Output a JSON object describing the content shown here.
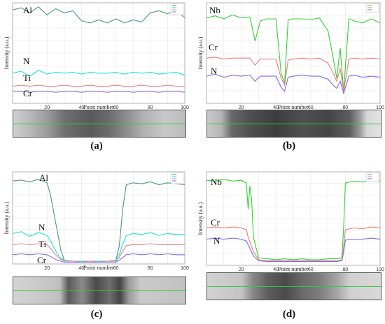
{
  "figure": {
    "colors": {
      "Al": "#4a9a7a",
      "Nb": "#2fd42f",
      "N": "#19e0e0",
      "N_violet": "#7b6cf0",
      "Ti": "#f08080",
      "Cr": "#8a70d8",
      "Cr_red": "#f07a7a"
    }
  },
  "chart_data": [
    {
      "panel_label": "(a)",
      "type": "line",
      "xlabel": "Point number",
      "ylabel": "Intensity (a.u.)",
      "xlim": [
        0,
        100
      ],
      "xticks": [
        20,
        40,
        60,
        80,
        100
      ],
      "ylim": [
        0,
        100
      ],
      "grid": true,
      "legend_position": "top-right",
      "series": [
        {
          "name": "Al",
          "color": "#4a9a7a",
          "x": [
            0,
            5,
            10,
            15,
            20,
            25,
            30,
            35,
            40,
            45,
            50,
            55,
            60,
            65,
            70,
            75,
            80,
            85,
            90,
            95,
            100
          ],
          "values": [
            93,
            95,
            90,
            96,
            88,
            94,
            90,
            92,
            82,
            80,
            83,
            80,
            84,
            80,
            83,
            81,
            90,
            92,
            89,
            93,
            85
          ]
        },
        {
          "name": "N",
          "color": "#19e0e0",
          "x": [
            0,
            5,
            10,
            15,
            20,
            25,
            30,
            35,
            40,
            45,
            50,
            55,
            60,
            65,
            70,
            75,
            80,
            85,
            90,
            95,
            100
          ],
          "values": [
            30,
            32,
            27,
            33,
            29,
            31,
            30,
            31,
            29,
            31,
            30,
            30,
            31,
            29,
            31,
            30,
            31,
            29,
            30,
            31,
            28
          ]
        },
        {
          "name": "Ti",
          "color": "#f08080",
          "x": [
            0,
            5,
            10,
            15,
            20,
            25,
            30,
            35,
            40,
            45,
            50,
            55,
            60,
            65,
            70,
            75,
            80,
            85,
            90,
            95,
            100
          ],
          "values": [
            17,
            18,
            17,
            18,
            17,
            17,
            18,
            17,
            17,
            18,
            17,
            17,
            18,
            17,
            17,
            18,
            17,
            17,
            18,
            17,
            17
          ]
        },
        {
          "name": "Cr",
          "color": "#8a70d8",
          "x": [
            0,
            5,
            10,
            15,
            20,
            25,
            30,
            35,
            40,
            45,
            50,
            55,
            60,
            65,
            70,
            75,
            80,
            85,
            90,
            95,
            100
          ],
          "values": [
            12,
            12,
            11,
            12,
            12,
            11,
            12,
            12,
            11,
            12,
            12,
            11,
            12,
            12,
            11,
            12,
            12,
            11,
            12,
            12,
            11
          ]
        }
      ]
    },
    {
      "panel_label": "(b)",
      "type": "line",
      "xlabel": "Point number",
      "ylabel": "Intensity (a.u.)",
      "xlim": [
        0,
        100
      ],
      "xticks": [
        20,
        40,
        60,
        80,
        100
      ],
      "ylim": [
        0,
        100
      ],
      "grid": true,
      "legend_position": "top-right",
      "series": [
        {
          "name": "Nb",
          "color": "#2fd42f",
          "x": [
            0,
            5,
            10,
            15,
            20,
            25,
            28,
            31,
            35,
            40,
            43,
            45,
            47,
            50,
            55,
            60,
            65,
            70,
            73,
            75,
            77,
            79,
            82,
            85,
            90,
            95,
            100
          ],
          "values": [
            85,
            87,
            84,
            88,
            85,
            86,
            62,
            82,
            84,
            84,
            30,
            20,
            83,
            84,
            84,
            83,
            85,
            72,
            45,
            25,
            55,
            12,
            84,
            82,
            80,
            84,
            80
          ]
        },
        {
          "name": "Cr",
          "color": "#f07a7a",
          "x": [
            0,
            5,
            10,
            15,
            20,
            25,
            28,
            31,
            35,
            40,
            43,
            45,
            47,
            50,
            55,
            60,
            65,
            70,
            73,
            75,
            77,
            79,
            82,
            85,
            90,
            95,
            100
          ],
          "values": [
            45,
            46,
            44,
            45,
            45,
            45,
            38,
            44,
            44,
            44,
            25,
            18,
            43,
            44,
            45,
            44,
            45,
            40,
            30,
            22,
            35,
            12,
            44,
            45,
            44,
            45,
            44
          ]
        },
        {
          "name": "N",
          "color": "#7b6cf0",
          "x": [
            0,
            5,
            10,
            15,
            20,
            25,
            28,
            31,
            35,
            40,
            43,
            45,
            47,
            50,
            55,
            60,
            65,
            70,
            73,
            75,
            77,
            79,
            82,
            85,
            90,
            95,
            100
          ],
          "values": [
            27,
            29,
            26,
            28,
            27,
            28,
            22,
            27,
            27,
            27,
            16,
            12,
            26,
            27,
            28,
            27,
            27,
            24,
            18,
            15,
            22,
            10,
            27,
            28,
            26,
            27,
            26
          ]
        }
      ]
    },
    {
      "panel_label": "(c)",
      "type": "line",
      "xlabel": "Point number",
      "ylabel": "Intensity (a.u.)",
      "xlim": [
        0,
        100
      ],
      "xticks": [
        20,
        40,
        60,
        80,
        100
      ],
      "ylim": [
        0,
        100
      ],
      "grid": true,
      "legend_position": "top-right",
      "series": [
        {
          "name": "Al",
          "color": "#4a9a7a",
          "x": [
            0,
            5,
            10,
            15,
            20,
            22,
            24,
            26,
            28,
            30,
            35,
            40,
            45,
            50,
            55,
            60,
            62,
            64,
            66,
            70,
            75,
            80,
            85,
            90,
            95,
            100
          ],
          "values": [
            90,
            91,
            89,
            92,
            88,
            75,
            55,
            35,
            15,
            4,
            3,
            3,
            3,
            3,
            3,
            4,
            20,
            60,
            86,
            88,
            87,
            89,
            86,
            88,
            87,
            86
          ]
        },
        {
          "name": "N",
          "color": "#19e0e0",
          "x": [
            0,
            5,
            10,
            15,
            20,
            22,
            24,
            26,
            28,
            30,
            35,
            40,
            45,
            50,
            55,
            60,
            62,
            64,
            66,
            70,
            75,
            80,
            85,
            90,
            95,
            100
          ],
          "values": [
            33,
            35,
            30,
            34,
            31,
            25,
            18,
            11,
            6,
            4,
            3,
            3,
            3,
            3,
            3,
            4,
            10,
            22,
            31,
            33,
            32,
            34,
            31,
            33,
            32,
            32
          ]
        },
        {
          "name": "Ti",
          "color": "#f08080",
          "x": [
            0,
            5,
            10,
            15,
            20,
            22,
            24,
            26,
            28,
            30,
            35,
            40,
            45,
            50,
            55,
            60,
            62,
            64,
            66,
            70,
            75,
            80,
            85,
            90,
            95,
            100
          ],
          "values": [
            21,
            22,
            21,
            22,
            21,
            17,
            12,
            8,
            5,
            3,
            3,
            2,
            3,
            2,
            3,
            3,
            7,
            14,
            20,
            21,
            21,
            22,
            21,
            21,
            21,
            21
          ]
        },
        {
          "name": "Cr",
          "color": "#8a70d8",
          "x": [
            0,
            5,
            10,
            15,
            20,
            22,
            24,
            26,
            28,
            30,
            35,
            40,
            45,
            50,
            55,
            60,
            62,
            64,
            66,
            70,
            75,
            80,
            85,
            90,
            95,
            100
          ],
          "values": [
            10,
            11,
            10,
            11,
            10,
            8,
            6,
            4,
            3,
            2,
            2,
            2,
            2,
            2,
            2,
            2,
            4,
            7,
            10,
            11,
            10,
            11,
            10,
            11,
            10,
            10
          ]
        }
      ]
    },
    {
      "panel_label": "(d)",
      "type": "line",
      "xlabel": "Point number",
      "ylabel": "Intensity (a.u.)",
      "xlim": [
        0,
        100
      ],
      "xticks": [
        20,
        40,
        60,
        80,
        100
      ],
      "ylim": [
        0,
        100
      ],
      "grid": true,
      "legend_position": "top-right",
      "series": [
        {
          "name": "Nb",
          "color": "#2fd42f",
          "x": [
            0,
            5,
            10,
            15,
            20,
            23,
            24,
            25,
            26,
            27,
            30,
            35,
            40,
            45,
            50,
            55,
            60,
            65,
            70,
            75,
            78,
            79,
            80,
            85,
            90,
            95,
            100
          ],
          "values": [
            91,
            90,
            92,
            90,
            91,
            88,
            60,
            85,
            70,
            30,
            8,
            7,
            6,
            7,
            6,
            7,
            6,
            6,
            7,
            7,
            8,
            40,
            88,
            90,
            89,
            91,
            90
          ]
        },
        {
          "name": "Cr",
          "color": "#f07a7a",
          "x": [
            0,
            5,
            10,
            15,
            20,
            23,
            24,
            25,
            26,
            27,
            30,
            35,
            40,
            45,
            50,
            55,
            60,
            65,
            70,
            75,
            78,
            79,
            80,
            85,
            90,
            95,
            100
          ],
          "values": [
            40,
            41,
            40,
            41,
            40,
            38,
            30,
            25,
            20,
            15,
            6,
            5,
            5,
            5,
            5,
            5,
            5,
            5,
            5,
            5,
            6,
            20,
            38,
            40,
            39,
            41,
            40
          ]
        },
        {
          "name": "N",
          "color": "#7b6cf0",
          "x": [
            0,
            5,
            10,
            15,
            20,
            23,
            24,
            25,
            26,
            27,
            30,
            35,
            40,
            45,
            50,
            55,
            60,
            65,
            70,
            75,
            78,
            79,
            80,
            85,
            90,
            95,
            100
          ],
          "values": [
            28,
            29,
            28,
            29,
            28,
            26,
            22,
            18,
            14,
            10,
            5,
            4,
            4,
            4,
            4,
            4,
            4,
            4,
            4,
            4,
            5,
            14,
            27,
            28,
            28,
            29,
            28
          ]
        }
      ]
    }
  ]
}
